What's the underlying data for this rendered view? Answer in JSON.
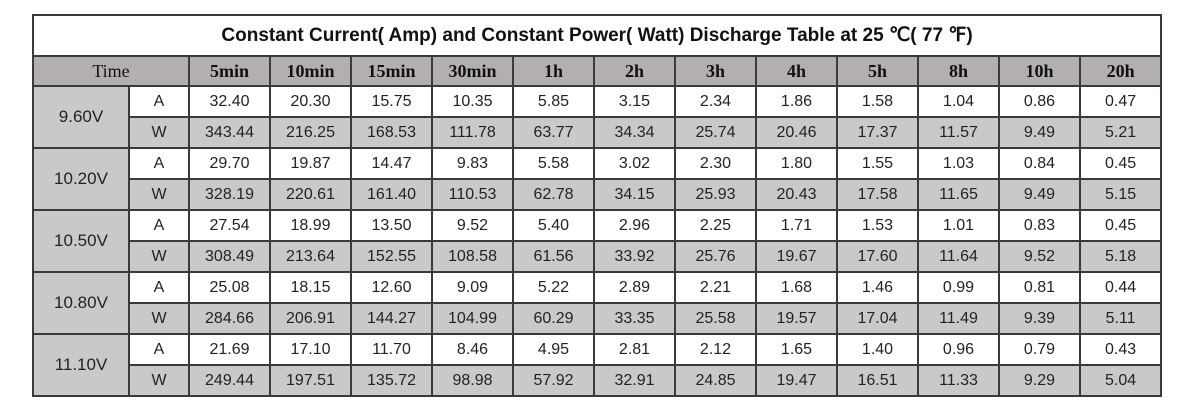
{
  "title": "Constant Current( Amp) and Constant Power( Watt) Discharge Table at 25 ℃( 77 ℉)",
  "header": {
    "time_label": "Time",
    "columns": [
      "5min",
      "10min",
      "15min",
      "30min",
      "1h",
      "2h",
      "3h",
      "4h",
      "5h",
      "8h",
      "10h",
      "20h"
    ]
  },
  "groups": [
    {
      "voltage": "9.60V",
      "rows": [
        {
          "unit": "A",
          "values": [
            "32.40",
            "20.30",
            "15.75",
            "10.35",
            "5.85",
            "3.15",
            "2.34",
            "1.86",
            "1.58",
            "1.04",
            "0.86",
            "0.47"
          ]
        },
        {
          "unit": "W",
          "values": [
            "343.44",
            "216.25",
            "168.53",
            "111.78",
            "63.77",
            "34.34",
            "25.74",
            "20.46",
            "17.37",
            "11.57",
            "9.49",
            "5.21"
          ]
        }
      ]
    },
    {
      "voltage": "10.20V",
      "rows": [
        {
          "unit": "A",
          "values": [
            "29.70",
            "19.87",
            "14.47",
            "9.83",
            "5.58",
            "3.02",
            "2.30",
            "1.80",
            "1.55",
            "1.03",
            "0.84",
            "0.45"
          ]
        },
        {
          "unit": "W",
          "values": [
            "328.19",
            "220.61",
            "161.40",
            "110.53",
            "62.78",
            "34.15",
            "25.93",
            "20.43",
            "17.58",
            "11.65",
            "9.49",
            "5.15"
          ]
        }
      ]
    },
    {
      "voltage": "10.50V",
      "rows": [
        {
          "unit": "A",
          "values": [
            "27.54",
            "18.99",
            "13.50",
            "9.52",
            "5.40",
            "2.96",
            "2.25",
            "1.71",
            "1.53",
            "1.01",
            "0.83",
            "0.45"
          ]
        },
        {
          "unit": "W",
          "values": [
            "308.49",
            "213.64",
            "152.55",
            "108.58",
            "61.56",
            "33.92",
            "25.76",
            "19.67",
            "17.60",
            "11.64",
            "9.52",
            "5.18"
          ]
        }
      ]
    },
    {
      "voltage": "10.80V",
      "rows": [
        {
          "unit": "A",
          "values": [
            "25.08",
            "18.15",
            "12.60",
            "9.09",
            "5.22",
            "2.89",
            "2.21",
            "1.68",
            "1.46",
            "0.99",
            "0.81",
            "0.44"
          ]
        },
        {
          "unit": "W",
          "values": [
            "284.66",
            "206.91",
            "144.27",
            "104.99",
            "60.29",
            "33.35",
            "25.58",
            "19.57",
            "17.04",
            "11.49",
            "9.39",
            "5.11"
          ]
        }
      ]
    },
    {
      "voltage": "11.10V",
      "rows": [
        {
          "unit": "A",
          "values": [
            "21.69",
            "17.10",
            "11.70",
            "8.46",
            "4.95",
            "2.81",
            "2.12",
            "1.65",
            "1.40",
            "0.96",
            "0.79",
            "0.43"
          ]
        },
        {
          "unit": "W",
          "values": [
            "249.44",
            "197.51",
            "135.72",
            "98.98",
            "57.92",
            "32.91",
            "24.85",
            "19.47",
            "16.51",
            "11.33",
            "9.29",
            "5.04"
          ]
        }
      ]
    }
  ]
}
